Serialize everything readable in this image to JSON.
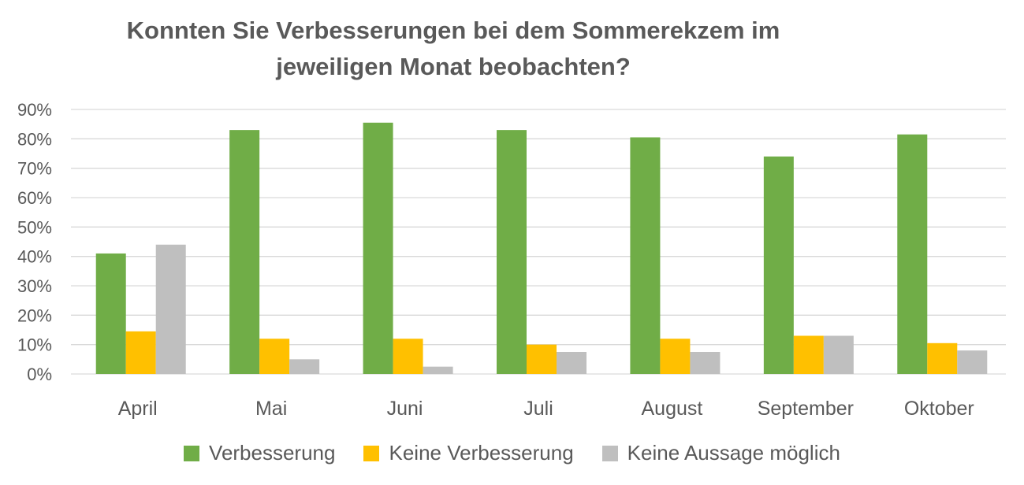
{
  "chart_data": {
    "type": "bar",
    "title_lines": [
      "Konnten Sie Verbesserungen bei dem Sommerekzem im",
      "jeweiligen Monat beobachten?"
    ],
    "categories": [
      "April",
      "Mai",
      "Juni",
      "Juli",
      "August",
      "September",
      "Oktober"
    ],
    "series": [
      {
        "name": "Verbesserung",
        "color": "#70AD47",
        "values": [
          41,
          83,
          85.5,
          83,
          80.5,
          74,
          81.5
        ]
      },
      {
        "name": "Keine Verbesserung",
        "color": "#FFC000",
        "values": [
          14.5,
          12,
          12,
          10,
          12,
          13,
          10.5
        ]
      },
      {
        "name": "Keine Aussage möglich",
        "color": "#BFBFBF",
        "values": [
          44,
          5,
          2.5,
          7.5,
          7.5,
          13,
          8
        ]
      }
    ],
    "y_ticks": [
      "0%",
      "10%",
      "20%",
      "30%",
      "40%",
      "50%",
      "60%",
      "70%",
      "80%",
      "90%"
    ],
    "ylim": [
      0,
      90
    ],
    "grid": true,
    "legend_position": "bottom"
  }
}
